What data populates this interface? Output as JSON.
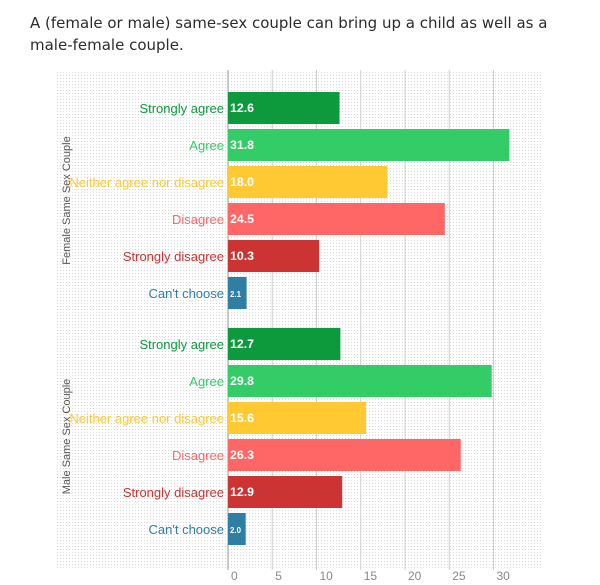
{
  "title": "A (female or male) same-sex couple can bring up a child as well as a male-female couple.",
  "chart_data": {
    "type": "bar",
    "orientation": "horizontal",
    "title": "A (female or male) same-sex couple can bring up a child as well as a male-female couple.",
    "xlabel": "",
    "ylabel": "",
    "xlim": [
      0,
      33
    ],
    "xticks": [
      0,
      5,
      10,
      15,
      20,
      25,
      30
    ],
    "grid": true,
    "categories": [
      "Strongly agree",
      "Agree",
      "Neither agree nor disagree",
      "Disagree",
      "Strongly disagree",
      "Can't choose"
    ],
    "colors": {
      "Strongly agree": "#0c9a3c",
      "Agree": "#33cc66",
      "Neither agree nor disagree": "#ffc933",
      "Disagree": "#ff6666",
      "Strongly disagree": "#cc3333",
      "Can't choose": "#2e7fa3"
    },
    "series": [
      {
        "name": "Female Same Sex Couple",
        "values": [
          12.6,
          31.8,
          18.0,
          24.5,
          10.3,
          2.1
        ],
        "labels": [
          "12.6",
          "31.8",
          "18.0",
          "24.5",
          "10.3",
          "2.1"
        ]
      },
      {
        "name": "Male Same Sex Couple",
        "values": [
          12.7,
          29.8,
          15.6,
          26.3,
          12.9,
          2.0
        ],
        "labels": [
          "12.7",
          "29.8",
          "15.6",
          "26.3",
          "12.9",
          "2.0"
        ]
      }
    ]
  }
}
